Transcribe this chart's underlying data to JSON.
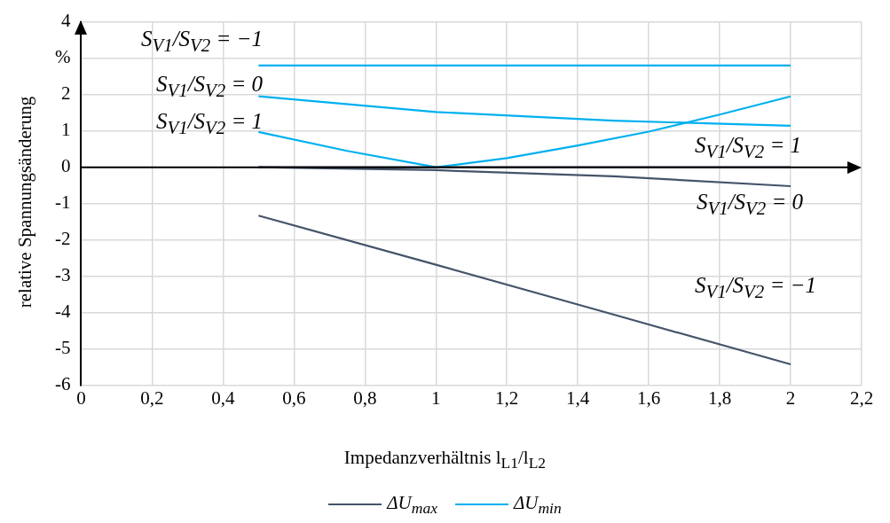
{
  "chart_data": {
    "type": "line",
    "xlabel": "Impedanzverhältnis l$_{L1}$/l$_{L2}$",
    "ylabel": "relative Spannungsänderung",
    "xlim": [
      0,
      2.2
    ],
    "xticks": [
      0,
      {
        "value": 0.2,
        "label": "0,2"
      },
      {
        "value": 0.4,
        "label": "0,4"
      },
      {
        "value": 0.6,
        "label": "0,6"
      },
      {
        "value": 0.8,
        "label": "0,8"
      },
      1,
      {
        "value": 1.2,
        "label": "1,2"
      },
      {
        "value": 1.4,
        "label": "1,4"
      },
      {
        "value": 1.6,
        "label": "1,6"
      },
      {
        "value": 1.8,
        "label": "1,8"
      },
      2,
      {
        "value": 2.2,
        "label": "2,2"
      }
    ],
    "ylim": [
      -6,
      4
    ],
    "yticks": [
      -6,
      -5,
      -4,
      -3,
      -2,
      -1,
      0,
      1,
      2,
      {
        "value": 3,
        "label": "%"
      },
      4
    ],
    "grid": true,
    "legend": "bottom",
    "marker": "none",
    "line_style": "solid",
    "series": [
      {
        "name": "ΔU$_{max}$",
        "color": "#44546a",
        "x": [
          0.5,
          1,
          1.5,
          2
        ],
        "values": [
          0,
          0,
          0,
          0
        ]
      },
      {
        "color": "#44546a",
        "x": [
          0.5,
          1,
          1.5,
          2
        ],
        "values": [
          0,
          -0.08,
          -0.25,
          -0.52
        ]
      },
      {
        "color": "#44546a",
        "x": [
          0.5,
          1,
          1.5,
          2
        ],
        "values": [
          -1.33,
          -2.68,
          -4.05,
          -5.42
        ]
      },
      {
        "name": "ΔU$_{min}$",
        "color": "#00b0f0",
        "x": [
          0.5,
          1,
          1.5,
          2
        ],
        "values": [
          2.8,
          2.8,
          2.8,
          2.8
        ]
      },
      {
        "color": "#00b0f0",
        "x": [
          0.5,
          1,
          1.5,
          2
        ],
        "values": [
          1.95,
          1.52,
          1.28,
          1.14
        ]
      },
      {
        "color": "#00b0f0",
        "x": [
          0.5,
          0.75,
          1,
          1.2,
          1.4,
          1.6,
          1.8,
          2
        ],
        "values": [
          0.97,
          0.45,
          0,
          0.25,
          0.6,
          0.98,
          1.45,
          1.95
        ]
      }
    ],
    "annotations": [
      "S$_{V1}$/S$_{V2}$ = −1",
      "S$_{V1}$/S$_{V2}$ = 0",
      "S$_{V1}$/S$_{V2}$ = 1",
      "S$_{V1}$/S$_{V2}$ = 1",
      "S$_{V1}$/S$_{V2}$ = 0",
      "S$_{V1}$/S$_{V2}$ = −1"
    ]
  }
}
